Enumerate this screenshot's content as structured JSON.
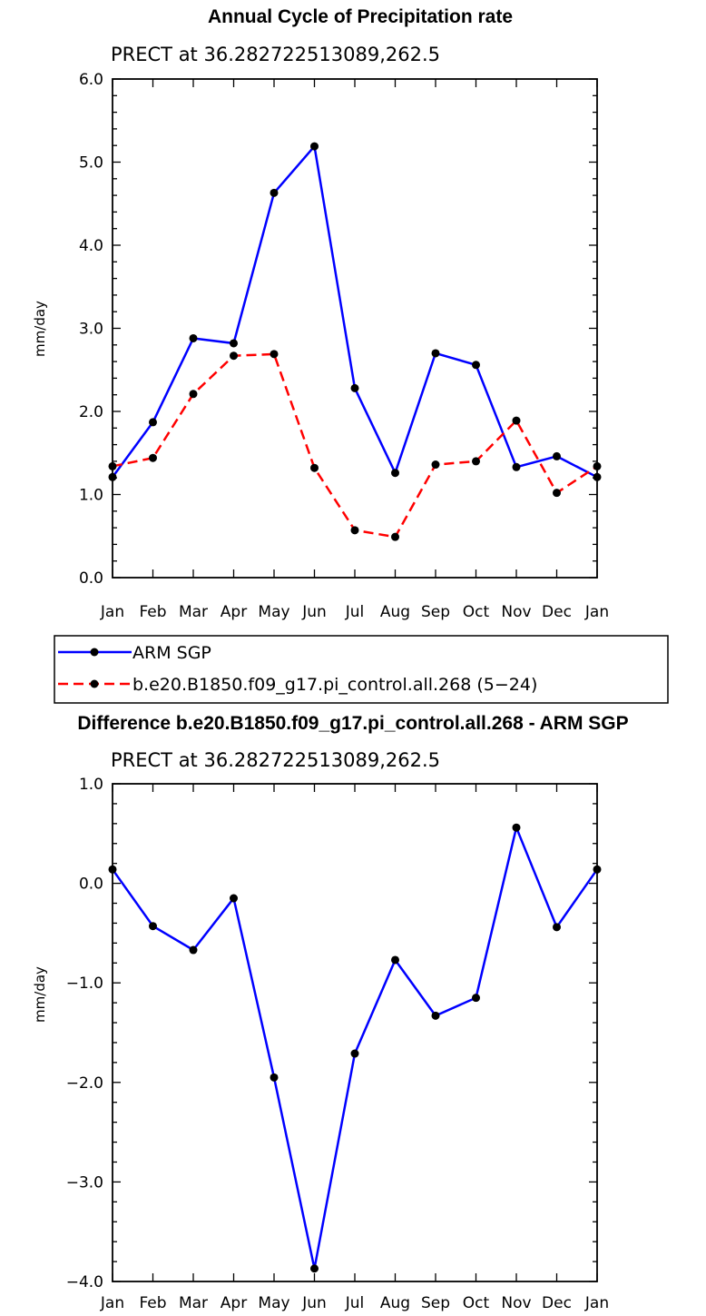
{
  "chart_data": [
    {
      "type": "line",
      "title": "Annual Cycle of Precipitation rate",
      "subtitle": "PRECT at 36.282722513089,262.5",
      "xlabel": "",
      "ylabel": "mm/day",
      "categories": [
        "Jan",
        "Feb",
        "Mar",
        "Apr",
        "May",
        "Jun",
        "Jul",
        "Aug",
        "Sep",
        "Oct",
        "Nov",
        "Dec",
        "Jan"
      ],
      "ylim": [
        0.0,
        6.0
      ],
      "yticks": [
        "0.0",
        "1.0",
        "2.0",
        "3.0",
        "4.0",
        "5.0",
        "6.0"
      ],
      "grid": false,
      "legend_position": "bottom",
      "series": [
        {
          "name": "ARM SGP",
          "color": "#0000ff",
          "dash": "solid",
          "values": [
            1.21,
            1.87,
            2.88,
            2.82,
            4.63,
            5.19,
            2.28,
            1.26,
            2.7,
            2.56,
            1.33,
            1.46,
            1.21
          ]
        },
        {
          "name": "b.e20.B1850.f09_g17.pi_control.all.268 (5−24)",
          "color": "#ff0000",
          "dash": "dashed",
          "values": [
            1.34,
            1.44,
            2.21,
            2.67,
            2.69,
            1.32,
            0.57,
            0.49,
            1.36,
            1.4,
            1.89,
            1.02,
            1.34
          ]
        }
      ]
    },
    {
      "type": "line",
      "title": "Difference b.e20.B1850.f09_g17.pi_control.all.268 - ARM SGP",
      "subtitle": "PRECT at 36.282722513089,262.5",
      "xlabel": "",
      "ylabel": "mm/day",
      "categories": [
        "Jan",
        "Feb",
        "Mar",
        "Apr",
        "May",
        "Jun",
        "Jul",
        "Aug",
        "Sep",
        "Oct",
        "Nov",
        "Dec",
        "Jan"
      ],
      "ylim": [
        -4.0,
        1.0
      ],
      "yticks": [
        "−4.0",
        "−3.0",
        "−2.0",
        "−1.0",
        "0.0",
        "1.0"
      ],
      "grid": false,
      "series": [
        {
          "name": "Difference",
          "color": "#0000ff",
          "dash": "solid",
          "values": [
            0.14,
            -0.43,
            -0.67,
            -0.15,
            -1.95,
            -3.87,
            -1.71,
            -0.77,
            -1.33,
            -1.15,
            0.56,
            -0.44,
            0.14
          ]
        }
      ]
    }
  ]
}
